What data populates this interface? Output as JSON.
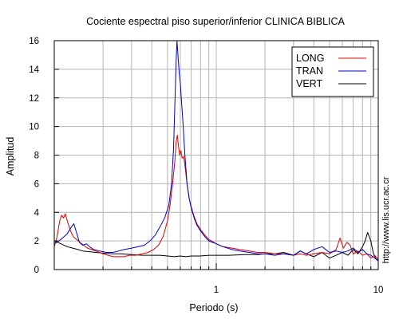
{
  "chart_data": {
    "type": "line",
    "title": "Cociente espectral piso superior/inferior  CLINICA BIBLICA",
    "xlabel": "Periodo (s)",
    "ylabel": "Amplitud",
    "x_scale": "log",
    "xlim": [
      0.1,
      10
    ],
    "ylim": [
      0,
      16
    ],
    "x_ticks": [
      {
        "value": 1,
        "label": "1"
      },
      {
        "value": 10,
        "label": "10"
      }
    ],
    "y_ticks": [
      {
        "value": 0,
        "label": "0"
      },
      {
        "value": 2,
        "label": "2"
      },
      {
        "value": 4,
        "label": "4"
      },
      {
        "value": 6,
        "label": "6"
      },
      {
        "value": 8,
        "label": "8"
      },
      {
        "value": 10,
        "label": "10"
      },
      {
        "value": 12,
        "label": "12"
      },
      {
        "value": 14,
        "label": "14"
      },
      {
        "value": 16,
        "label": "16"
      }
    ],
    "grid": true,
    "legend_position": "top-right",
    "watermark": "http://www.lis.ucr.ac.cr",
    "series": [
      {
        "name": "LONG",
        "color": "#e00000",
        "points": [
          [
            0.1,
            1.6
          ],
          [
            0.104,
            2.3
          ],
          [
            0.108,
            3.4
          ],
          [
            0.111,
            3.8
          ],
          [
            0.114,
            3.6
          ],
          [
            0.117,
            3.9
          ],
          [
            0.121,
            3.3
          ],
          [
            0.126,
            2.7
          ],
          [
            0.131,
            2.3
          ],
          [
            0.137,
            2.1
          ],
          [
            0.144,
            1.9
          ],
          [
            0.152,
            1.7
          ],
          [
            0.16,
            1.5
          ],
          [
            0.17,
            1.4
          ],
          [
            0.18,
            1.3
          ],
          [
            0.19,
            1.2
          ],
          [
            0.2,
            1.1
          ],
          [
            0.215,
            1.0
          ],
          [
            0.23,
            0.9
          ],
          [
            0.25,
            0.9
          ],
          [
            0.27,
            0.9
          ],
          [
            0.29,
            1.0
          ],
          [
            0.32,
            1.0
          ],
          [
            0.35,
            1.1
          ],
          [
            0.38,
            1.2
          ],
          [
            0.41,
            1.4
          ],
          [
            0.44,
            1.7
          ],
          [
            0.47,
            2.3
          ],
          [
            0.5,
            3.4
          ],
          [
            0.52,
            4.6
          ],
          [
            0.54,
            6.2
          ],
          [
            0.555,
            7.6
          ],
          [
            0.565,
            8.9
          ],
          [
            0.575,
            9.4
          ],
          [
            0.585,
            8.6
          ],
          [
            0.595,
            8.0
          ],
          [
            0.605,
            8.3
          ],
          [
            0.615,
            7.8
          ],
          [
            0.63,
            7.9
          ],
          [
            0.645,
            7.0
          ],
          [
            0.66,
            6.0
          ],
          [
            0.68,
            5.0
          ],
          [
            0.7,
            4.4
          ],
          [
            0.73,
            3.7
          ],
          [
            0.76,
            3.2
          ],
          [
            0.8,
            2.8
          ],
          [
            0.85,
            2.4
          ],
          [
            0.9,
            2.1
          ],
          [
            1.0,
            1.8
          ],
          [
            1.1,
            1.6
          ],
          [
            1.25,
            1.5
          ],
          [
            1.4,
            1.4
          ],
          [
            1.6,
            1.3
          ],
          [
            1.8,
            1.2
          ],
          [
            2.0,
            1.2
          ],
          [
            2.3,
            1.1
          ],
          [
            2.6,
            1.1
          ],
          [
            3.0,
            1.0
          ],
          [
            3.3,
            1.1
          ],
          [
            3.6,
            1.0
          ],
          [
            4.0,
            1.1
          ],
          [
            4.5,
            1.2
          ],
          [
            5.0,
            1.1
          ],
          [
            5.5,
            1.4
          ],
          [
            5.8,
            2.2
          ],
          [
            6.1,
            1.5
          ],
          [
            6.4,
            1.9
          ],
          [
            6.7,
            1.7
          ],
          [
            7.0,
            1.1
          ],
          [
            7.5,
            1.3
          ],
          [
            8.0,
            1.0
          ],
          [
            8.5,
            1.1
          ],
          [
            9.0,
            0.8
          ],
          [
            9.5,
            1.0
          ],
          [
            10.0,
            0.7
          ]
        ]
      },
      {
        "name": "TRAN",
        "color": "#0000c8",
        "points": [
          [
            0.1,
            1.8
          ],
          [
            0.11,
            2.1
          ],
          [
            0.12,
            2.5
          ],
          [
            0.128,
            3.0
          ],
          [
            0.132,
            3.2
          ],
          [
            0.137,
            2.6
          ],
          [
            0.143,
            1.9
          ],
          [
            0.15,
            1.7
          ],
          [
            0.158,
            1.8
          ],
          [
            0.165,
            1.6
          ],
          [
            0.175,
            1.4
          ],
          [
            0.19,
            1.3
          ],
          [
            0.21,
            1.2
          ],
          [
            0.23,
            1.2
          ],
          [
            0.25,
            1.3
          ],
          [
            0.27,
            1.4
          ],
          [
            0.3,
            1.5
          ],
          [
            0.33,
            1.6
          ],
          [
            0.36,
            1.7
          ],
          [
            0.39,
            2.0
          ],
          [
            0.42,
            2.4
          ],
          [
            0.45,
            3.0
          ],
          [
            0.48,
            3.6
          ],
          [
            0.51,
            4.5
          ],
          [
            0.53,
            6.0
          ],
          [
            0.545,
            8.5
          ],
          [
            0.555,
            11.5
          ],
          [
            0.565,
            14.5
          ],
          [
            0.572,
            16.0
          ],
          [
            0.58,
            15.0
          ],
          [
            0.59,
            13.8
          ],
          [
            0.6,
            13.0
          ],
          [
            0.61,
            11.8
          ],
          [
            0.625,
            10.0
          ],
          [
            0.64,
            8.0
          ],
          [
            0.66,
            6.0
          ],
          [
            0.68,
            5.0
          ],
          [
            0.7,
            4.3
          ],
          [
            0.73,
            3.6
          ],
          [
            0.76,
            3.1
          ],
          [
            0.8,
            2.7
          ],
          [
            0.85,
            2.3
          ],
          [
            0.9,
            2.0
          ],
          [
            1.0,
            1.8
          ],
          [
            1.1,
            1.6
          ],
          [
            1.25,
            1.4
          ],
          [
            1.4,
            1.3
          ],
          [
            1.6,
            1.2
          ],
          [
            1.8,
            1.1
          ],
          [
            2.0,
            1.1
          ],
          [
            2.3,
            1.0
          ],
          [
            2.6,
            1.1
          ],
          [
            3.0,
            1.0
          ],
          [
            3.3,
            1.3
          ],
          [
            3.6,
            1.1
          ],
          [
            4.0,
            1.4
          ],
          [
            4.5,
            1.6
          ],
          [
            5.0,
            1.2
          ],
          [
            5.5,
            1.3
          ],
          [
            6.0,
            1.2
          ],
          [
            6.5,
            1.3
          ],
          [
            7.0,
            1.5
          ],
          [
            7.5,
            1.2
          ],
          [
            8.0,
            1.4
          ],
          [
            8.5,
            1.1
          ],
          [
            9.0,
            1.0
          ],
          [
            9.5,
            0.8
          ],
          [
            10.0,
            0.6
          ]
        ]
      },
      {
        "name": "VERT",
        "color": "#000000",
        "points": [
          [
            0.1,
            2.0
          ],
          [
            0.11,
            1.8
          ],
          [
            0.12,
            1.6
          ],
          [
            0.13,
            1.5
          ],
          [
            0.14,
            1.4
          ],
          [
            0.15,
            1.3
          ],
          [
            0.165,
            1.25
          ],
          [
            0.18,
            1.2
          ],
          [
            0.2,
            1.15
          ],
          [
            0.23,
            1.1
          ],
          [
            0.26,
            1.1
          ],
          [
            0.3,
            1.05
          ],
          [
            0.35,
            1.0
          ],
          [
            0.4,
            1.0
          ],
          [
            0.45,
            1.0
          ],
          [
            0.5,
            0.95
          ],
          [
            0.55,
            0.9
          ],
          [
            0.6,
            0.95
          ],
          [
            0.65,
            0.9
          ],
          [
            0.7,
            0.95
          ],
          [
            0.8,
            0.95
          ],
          [
            0.9,
            1.0
          ],
          [
            1.0,
            1.0
          ],
          [
            1.2,
            1.0
          ],
          [
            1.5,
            1.05
          ],
          [
            1.8,
            1.05
          ],
          [
            2.0,
            1.1
          ],
          [
            2.3,
            1.1
          ],
          [
            2.6,
            1.2
          ],
          [
            3.0,
            1.0
          ],
          [
            3.3,
            1.3
          ],
          [
            3.6,
            1.1
          ],
          [
            4.0,
            0.9
          ],
          [
            4.5,
            1.2
          ],
          [
            5.0,
            0.8
          ],
          [
            5.5,
            1.0
          ],
          [
            6.0,
            1.2
          ],
          [
            6.5,
            1.0
          ],
          [
            7.0,
            1.4
          ],
          [
            7.5,
            1.1
          ],
          [
            8.0,
            1.6
          ],
          [
            8.3,
            2.0
          ],
          [
            8.6,
            2.6
          ],
          [
            9.0,
            2.0
          ],
          [
            9.3,
            1.2
          ],
          [
            9.6,
            0.8
          ],
          [
            10.0,
            0.6
          ]
        ]
      }
    ]
  }
}
